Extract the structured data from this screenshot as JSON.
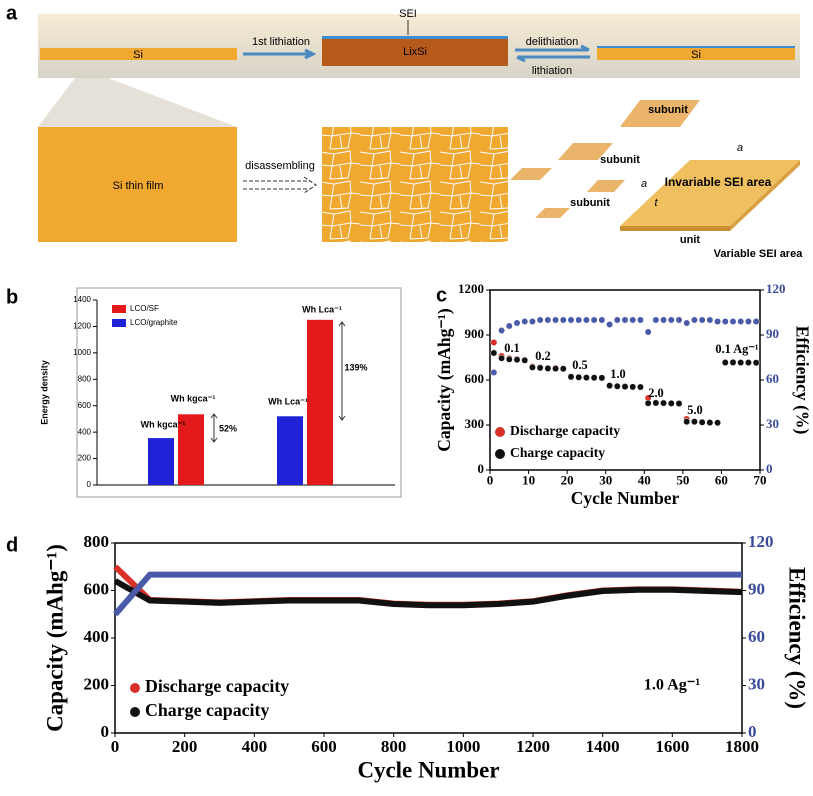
{
  "figure_a": {
    "label": "a",
    "sei": "SEI",
    "si_left": "Si",
    "step1": "1st lithiation",
    "lixsi": "LixSi",
    "delithiation": "delithiation",
    "lithiation": "lithiation",
    "si_right": "Si",
    "thin_film": "Si thin film",
    "disassembling": "disassembling",
    "subunits": [
      "subunit",
      "subunit",
      "subunit"
    ],
    "dim_a_top": "a",
    "dim_a_side": "a",
    "dim_t": "t",
    "invariable": "Invariable SEI area",
    "unit": "unit",
    "variable": "Variable SEI area"
  },
  "chart_data": [
    {
      "label": "b",
      "type": "bar",
      "ylabel": "Energy density",
      "categories": [
        null,
        null
      ],
      "series": [
        {
          "name": "LCO/SF",
          "color": "#e3191c",
          "values": [
            535,
            1250
          ]
        },
        {
          "name": "LCO/graphite",
          "color": "#1f22d6",
          "values": [
            355,
            520
          ]
        }
      ],
      "ylim": [
        0,
        1400
      ],
      "yticks": [
        0,
        200,
        400,
        600,
        800,
        1000,
        1200,
        1400
      ],
      "annotations": [
        "Wh kgca⁻¹",
        "Wh kgca⁻¹",
        "52%",
        "Wh Lca⁻¹",
        "Wh Lca⁻¹",
        "139%"
      ]
    },
    {
      "label": "c",
      "type": "scatter",
      "xlabel": "Cycle Number",
      "ylabel": "Capacity (mAhg⁻¹)",
      "y2label": "Efficiency (%)",
      "x": [
        1,
        3,
        5,
        7,
        9,
        11,
        13,
        15,
        17,
        19,
        21,
        23,
        25,
        27,
        29,
        31,
        33,
        35,
        37,
        39,
        41,
        43,
        45,
        47,
        49,
        51,
        53,
        55,
        57,
        59,
        61,
        63,
        65,
        67,
        69
      ],
      "series": [
        {
          "name": "Discharge capacity",
          "color": "#d9302a",
          "values": [
            850,
            760,
            745,
            740,
            735,
            690,
            685,
            680,
            680,
            678,
            625,
            620,
            618,
            617,
            616,
            565,
            560,
            558,
            556,
            555,
            480,
            450,
            448,
            446,
            445,
            340,
            325,
            320,
            318,
            316,
            720,
            720,
            718,
            718,
            717
          ]
        },
        {
          "name": "Charge capacity",
          "color": "#111111",
          "values": [
            780,
            745,
            738,
            735,
            731,
            684,
            681,
            677,
            676,
            675,
            621,
            618,
            616,
            615,
            614,
            562,
            558,
            556,
            554,
            553,
            445,
            447,
            446,
            444,
            443,
            322,
            322,
            318,
            316,
            315,
            716,
            717,
            716,
            716,
            715
          ]
        },
        {
          "color": "#4a5aa8",
          "axis": "y2",
          "values": [
            65,
            93,
            96,
            98,
            99,
            99,
            100,
            100,
            100,
            100,
            100,
            100,
            100,
            100,
            100,
            97,
            100,
            100,
            100,
            100,
            92,
            100,
            100,
            100,
            100,
            98,
            100,
            100,
            100,
            99,
            99,
            99,
            99,
            99,
            99
          ]
        }
      ],
      "xlim": [
        0,
        70
      ],
      "xticks": [
        0,
        10,
        20,
        30,
        40,
        50,
        60,
        70
      ],
      "ylim": [
        0,
        1200
      ],
      "yticks": [
        0,
        300,
        600,
        900,
        1200
      ],
      "y2lim": [
        0,
        120
      ],
      "y2ticks": [
        0,
        30,
        60,
        90,
        120
      ],
      "annotations": [
        "0.1",
        "0.2",
        "0.5",
        "1.0",
        "2.0",
        "5.0",
        "0.1 Ag⁻¹"
      ]
    },
    {
      "label": "d",
      "type": "line",
      "xlabel": "Cycle Number",
      "ylabel": "Capacity (mAhg⁻¹)",
      "y2label": "Efficiency (%)",
      "x": [
        1,
        100,
        200,
        300,
        400,
        500,
        600,
        700,
        800,
        900,
        1000,
        1100,
        1200,
        1300,
        1400,
        1500,
        1600,
        1700,
        1800
      ],
      "series": [
        {
          "name": "Discharge capacity",
          "color": "#d9302a",
          "values": [
            700,
            560,
            555,
            550,
            555,
            560,
            560,
            560,
            545,
            540,
            540,
            545,
            555,
            580,
            600,
            605,
            605,
            600,
            595
          ]
        },
        {
          "name": "Charge capacity",
          "color": "#111111",
          "values": [
            640,
            558,
            553,
            548,
            553,
            558,
            558,
            558,
            543,
            538,
            538,
            543,
            553,
            578,
            598,
            603,
            603,
            598,
            593
          ]
        },
        {
          "color": "#4a5aa8",
          "axis": "y2",
          "values": [
            75,
            100,
            100,
            100,
            100,
            100,
            100,
            100,
            100,
            100,
            100,
            100,
            100,
            100,
            100,
            100,
            100,
            100,
            100
          ]
        }
      ],
      "xlim": [
        0,
        1800
      ],
      "xticks": [
        0,
        200,
        400,
        600,
        800,
        1000,
        1200,
        1400,
        1600,
        1800
      ],
      "ylim": [
        0,
        800
      ],
      "yticks": [
        0,
        200,
        400,
        600,
        800
      ],
      "y2lim": [
        0,
        120
      ],
      "y2ticks": [
        0,
        30,
        60,
        90,
        120
      ],
      "annotations": [
        "1.0 Ag⁻¹"
      ]
    }
  ]
}
